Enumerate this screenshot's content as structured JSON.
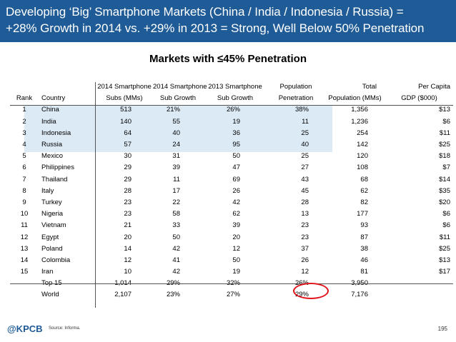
{
  "header": {
    "line1": "Developing ‘Big’ Smartphone Markets (China / India / Indonesia / Russia) =",
    "line2": "+28% Growth in 2014 vs. +29% in 2013 = Strong, Well Below 50% Penetration"
  },
  "subtitle": "Markets with ≤45% Penetration",
  "columns": {
    "top": [
      "",
      "",
      "2014 Smartphone",
      "2014 Smartphone",
      "2013 Smartphone",
      "Population",
      "Total",
      "Per Capita"
    ],
    "bottom": [
      "Rank",
      "Country",
      "Subs (MMs)",
      "Sub Growth",
      "Sub Growth",
      "Penetration",
      "Population (MMs)",
      "GDP ($000)"
    ]
  },
  "rows": [
    {
      "rank": "1",
      "country": "China",
      "subs": "513",
      "g2014": "21%",
      "g2013": "26%",
      "pen": "38%",
      "pop": "1,356",
      "gdp": "$13"
    },
    {
      "rank": "2",
      "country": "India",
      "subs": "140",
      "g2014": "55",
      "g2013": "19",
      "pen": "11",
      "pop": "1,236",
      "gdp": "$6"
    },
    {
      "rank": "3",
      "country": "Indonesia",
      "subs": "64",
      "g2014": "40",
      "g2013": "36",
      "pen": "25",
      "pop": "254",
      "gdp": "$11"
    },
    {
      "rank": "4",
      "country": "Russia",
      "subs": "57",
      "g2014": "24",
      "g2013": "95",
      "pen": "40",
      "pop": "142",
      "gdp": "$25"
    },
    {
      "rank": "5",
      "country": "Mexico",
      "subs": "30",
      "g2014": "31",
      "g2013": "50",
      "pen": "25",
      "pop": "120",
      "gdp": "$18"
    },
    {
      "rank": "6",
      "country": "Philippines",
      "subs": "29",
      "g2014": "39",
      "g2013": "47",
      "pen": "27",
      "pop": "108",
      "gdp": "$7"
    },
    {
      "rank": "7",
      "country": "Thailand",
      "subs": "29",
      "g2014": "11",
      "g2013": "69",
      "pen": "43",
      "pop": "68",
      "gdp": "$14"
    },
    {
      "rank": "8",
      "country": "Italy",
      "subs": "28",
      "g2014": "17",
      "g2013": "26",
      "pen": "45",
      "pop": "62",
      "gdp": "$35"
    },
    {
      "rank": "9",
      "country": "Turkey",
      "subs": "23",
      "g2014": "22",
      "g2013": "42",
      "pen": "28",
      "pop": "82",
      "gdp": "$20"
    },
    {
      "rank": "10",
      "country": "Nigeria",
      "subs": "23",
      "g2014": "58",
      "g2013": "62",
      "pen": "13",
      "pop": "177",
      "gdp": "$6"
    },
    {
      "rank": "11",
      "country": "Vietnam",
      "subs": "21",
      "g2014": "33",
      "g2013": "39",
      "pen": "23",
      "pop": "93",
      "gdp": "$6"
    },
    {
      "rank": "12",
      "country": "Egypt",
      "subs": "20",
      "g2014": "50",
      "g2013": "20",
      "pen": "23",
      "pop": "87",
      "gdp": "$11"
    },
    {
      "rank": "13",
      "country": "Poland",
      "subs": "14",
      "g2014": "42",
      "g2013": "12",
      "pen": "37",
      "pop": "38",
      "gdp": "$25"
    },
    {
      "rank": "14",
      "country": "Colombia",
      "subs": "12",
      "g2014": "41",
      "g2013": "50",
      "pen": "26",
      "pop": "46",
      "gdp": "$13"
    },
    {
      "rank": "15",
      "country": "Iran",
      "subs": "10",
      "g2014": "42",
      "g2013": "19",
      "pen": "12",
      "pop": "81",
      "gdp": "$17"
    }
  ],
  "totals": [
    {
      "label": "Top 15",
      "subs": "1,014",
      "g2014": "29%",
      "g2013": "32%",
      "pen": "26%",
      "pop": "3,950",
      "gdp": ""
    },
    {
      "label": "World",
      "subs": "2,107",
      "g2014": "23%",
      "g2013": "27%",
      "pen": "29%",
      "pop": "7,176",
      "gdp": ""
    }
  ],
  "footer": {
    "logo": "@KPCB",
    "source": "Source: Informa.",
    "page": "195"
  },
  "colors": {
    "header_bg": "#1f5b97",
    "highlight_bg": "#dceaf5",
    "circle": "#e0141b"
  }
}
